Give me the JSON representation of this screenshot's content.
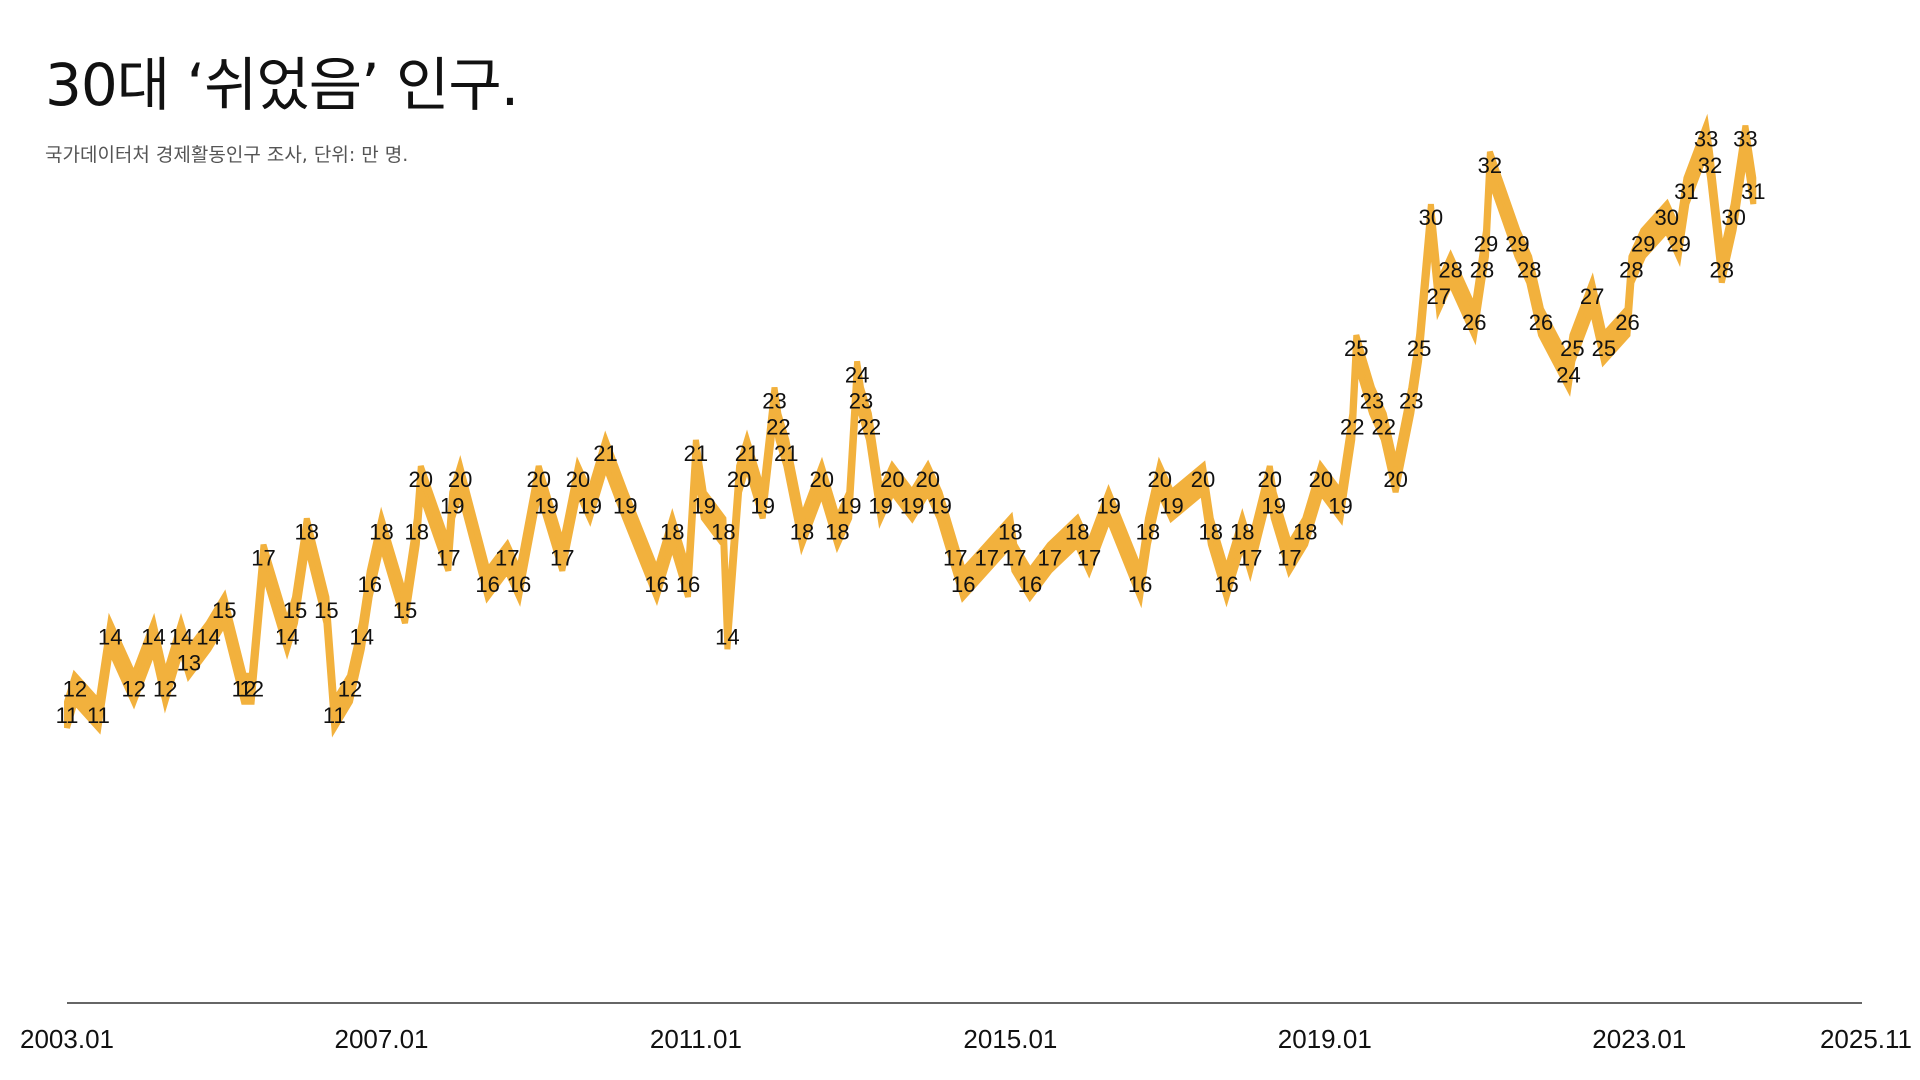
{
  "title": "30대 ‘쉬었음’ 인구.",
  "subtitle": "국가데이터처 경제활동인구 조사, 단위: 만 명.",
  "colors": {
    "band": "#F2B13D",
    "axis": "#333333",
    "text": "#111111"
  },
  "chart_data": {
    "type": "area",
    "title": "30대 ‘쉬었음’ 인구.",
    "subtitle": "국가데이터처 경제활동인구 조사, 단위: 만 명.",
    "x_tick_labels": [
      "2003.01",
      "2007.01",
      "2011.01",
      "2015.01",
      "2019.01",
      "2023.01",
      "2025.11"
    ],
    "x_ticks": [
      2003.0,
      2007.0,
      2011.0,
      2015.0,
      2019.0,
      2023.0,
      2025.8333
    ],
    "xlim": [
      2003.0,
      2025.8333
    ],
    "ylim": [
      0,
      36
    ],
    "grid": false,
    "legend": "none",
    "data_labels": [
      {
        "x": 2003.0,
        "y": 11
      },
      {
        "x": 2003.1,
        "y": 12
      },
      {
        "x": 2003.4,
        "y": 11
      },
      {
        "x": 2003.55,
        "y": 14
      },
      {
        "x": 2003.85,
        "y": 12
      },
      {
        "x": 2004.1,
        "y": 14
      },
      {
        "x": 2004.25,
        "y": 12
      },
      {
        "x": 2004.45,
        "y": 14
      },
      {
        "x": 2004.55,
        "y": 13
      },
      {
        "x": 2004.8,
        "y": 14
      },
      {
        "x": 2005.0,
        "y": 15
      },
      {
        "x": 2005.25,
        "y": 12
      },
      {
        "x": 2005.35,
        "y": 12
      },
      {
        "x": 2005.5,
        "y": 17
      },
      {
        "x": 2005.8,
        "y": 14
      },
      {
        "x": 2005.9,
        "y": 15
      },
      {
        "x": 2006.05,
        "y": 18
      },
      {
        "x": 2006.3,
        "y": 15
      },
      {
        "x": 2006.4,
        "y": 11
      },
      {
        "x": 2006.6,
        "y": 12
      },
      {
        "x": 2006.75,
        "y": 14
      },
      {
        "x": 2006.85,
        "y": 16
      },
      {
        "x": 2007.0,
        "y": 18
      },
      {
        "x": 2007.3,
        "y": 15
      },
      {
        "x": 2007.45,
        "y": 18
      },
      {
        "x": 2007.5,
        "y": 20
      },
      {
        "x": 2007.85,
        "y": 17
      },
      {
        "x": 2007.9,
        "y": 19
      },
      {
        "x": 2008.0,
        "y": 20
      },
      {
        "x": 2008.35,
        "y": 16
      },
      {
        "x": 2008.6,
        "y": 17
      },
      {
        "x": 2008.75,
        "y": 16
      },
      {
        "x": 2009.0,
        "y": 20
      },
      {
        "x": 2009.1,
        "y": 19
      },
      {
        "x": 2009.3,
        "y": 17
      },
      {
        "x": 2009.5,
        "y": 20
      },
      {
        "x": 2009.65,
        "y": 19
      },
      {
        "x": 2009.85,
        "y": 21
      },
      {
        "x": 2010.1,
        "y": 19
      },
      {
        "x": 2010.5,
        "y": 16
      },
      {
        "x": 2010.7,
        "y": 18
      },
      {
        "x": 2010.9,
        "y": 16
      },
      {
        "x": 2011.0,
        "y": 21
      },
      {
        "x": 2011.1,
        "y": 19
      },
      {
        "x": 2011.35,
        "y": 18
      },
      {
        "x": 2011.4,
        "y": 14
      },
      {
        "x": 2011.55,
        "y": 20
      },
      {
        "x": 2011.65,
        "y": 21
      },
      {
        "x": 2011.85,
        "y": 19
      },
      {
        "x": 2012.0,
        "y": 23
      },
      {
        "x": 2012.05,
        "y": 22
      },
      {
        "x": 2012.15,
        "y": 21
      },
      {
        "x": 2012.35,
        "y": 18
      },
      {
        "x": 2012.6,
        "y": 20
      },
      {
        "x": 2012.8,
        "y": 18
      },
      {
        "x": 2012.95,
        "y": 19
      },
      {
        "x": 2013.05,
        "y": 24
      },
      {
        "x": 2013.1,
        "y": 23
      },
      {
        "x": 2013.2,
        "y": 22
      },
      {
        "x": 2013.35,
        "y": 19
      },
      {
        "x": 2013.5,
        "y": 20
      },
      {
        "x": 2013.75,
        "y": 19
      },
      {
        "x": 2013.95,
        "y": 20
      },
      {
        "x": 2014.1,
        "y": 19
      },
      {
        "x": 2014.3,
        "y": 17
      },
      {
        "x": 2014.4,
        "y": 16
      },
      {
        "x": 2014.7,
        "y": 17
      },
      {
        "x": 2015.0,
        "y": 18
      },
      {
        "x": 2015.05,
        "y": 17
      },
      {
        "x": 2015.25,
        "y": 16
      },
      {
        "x": 2015.5,
        "y": 17
      },
      {
        "x": 2015.85,
        "y": 18
      },
      {
        "x": 2016.0,
        "y": 17
      },
      {
        "x": 2016.25,
        "y": 19
      },
      {
        "x": 2016.65,
        "y": 16
      },
      {
        "x": 2016.75,
        "y": 18
      },
      {
        "x": 2016.9,
        "y": 20
      },
      {
        "x": 2017.05,
        "y": 19
      },
      {
        "x": 2017.45,
        "y": 20
      },
      {
        "x": 2017.55,
        "y": 18
      },
      {
        "x": 2017.75,
        "y": 16
      },
      {
        "x": 2017.95,
        "y": 18
      },
      {
        "x": 2018.05,
        "y": 17
      },
      {
        "x": 2018.3,
        "y": 20
      },
      {
        "x": 2018.35,
        "y": 19
      },
      {
        "x": 2018.55,
        "y": 17
      },
      {
        "x": 2018.75,
        "y": 18
      },
      {
        "x": 2018.95,
        "y": 20
      },
      {
        "x": 2019.2,
        "y": 19
      },
      {
        "x": 2019.35,
        "y": 22
      },
      {
        "x": 2019.4,
        "y": 25
      },
      {
        "x": 2019.6,
        "y": 23
      },
      {
        "x": 2019.75,
        "y": 22
      },
      {
        "x": 2019.9,
        "y": 20
      },
      {
        "x": 2020.1,
        "y": 23
      },
      {
        "x": 2020.2,
        "y": 25
      },
      {
        "x": 2020.35,
        "y": 30
      },
      {
        "x": 2020.45,
        "y": 27
      },
      {
        "x": 2020.6,
        "y": 28
      },
      {
        "x": 2020.9,
        "y": 26
      },
      {
        "x": 2021.0,
        "y": 28
      },
      {
        "x": 2021.05,
        "y": 29
      },
      {
        "x": 2021.1,
        "y": 32
      },
      {
        "x": 2021.45,
        "y": 29
      },
      {
        "x": 2021.6,
        "y": 28
      },
      {
        "x": 2021.75,
        "y": 26
      },
      {
        "x": 2022.15,
        "y": 25
      },
      {
        "x": 2022.1,
        "y": 24
      },
      {
        "x": 2022.4,
        "y": 27
      },
      {
        "x": 2022.55,
        "y": 25
      },
      {
        "x": 2022.85,
        "y": 26
      },
      {
        "x": 2022.9,
        "y": 28
      },
      {
        "x": 2023.05,
        "y": 29
      },
      {
        "x": 2023.35,
        "y": 30
      },
      {
        "x": 2023.5,
        "y": 29
      },
      {
        "x": 2023.6,
        "y": 31
      },
      {
        "x": 2023.85,
        "y": 33
      },
      {
        "x": 2023.9,
        "y": 32
      },
      {
        "x": 2024.05,
        "y": 28
      },
      {
        "x": 2024.2,
        "y": 30
      },
      {
        "x": 2024.35,
        "y": 33
      },
      {
        "x": 2024.45,
        "y": 31
      }
    ]
  }
}
